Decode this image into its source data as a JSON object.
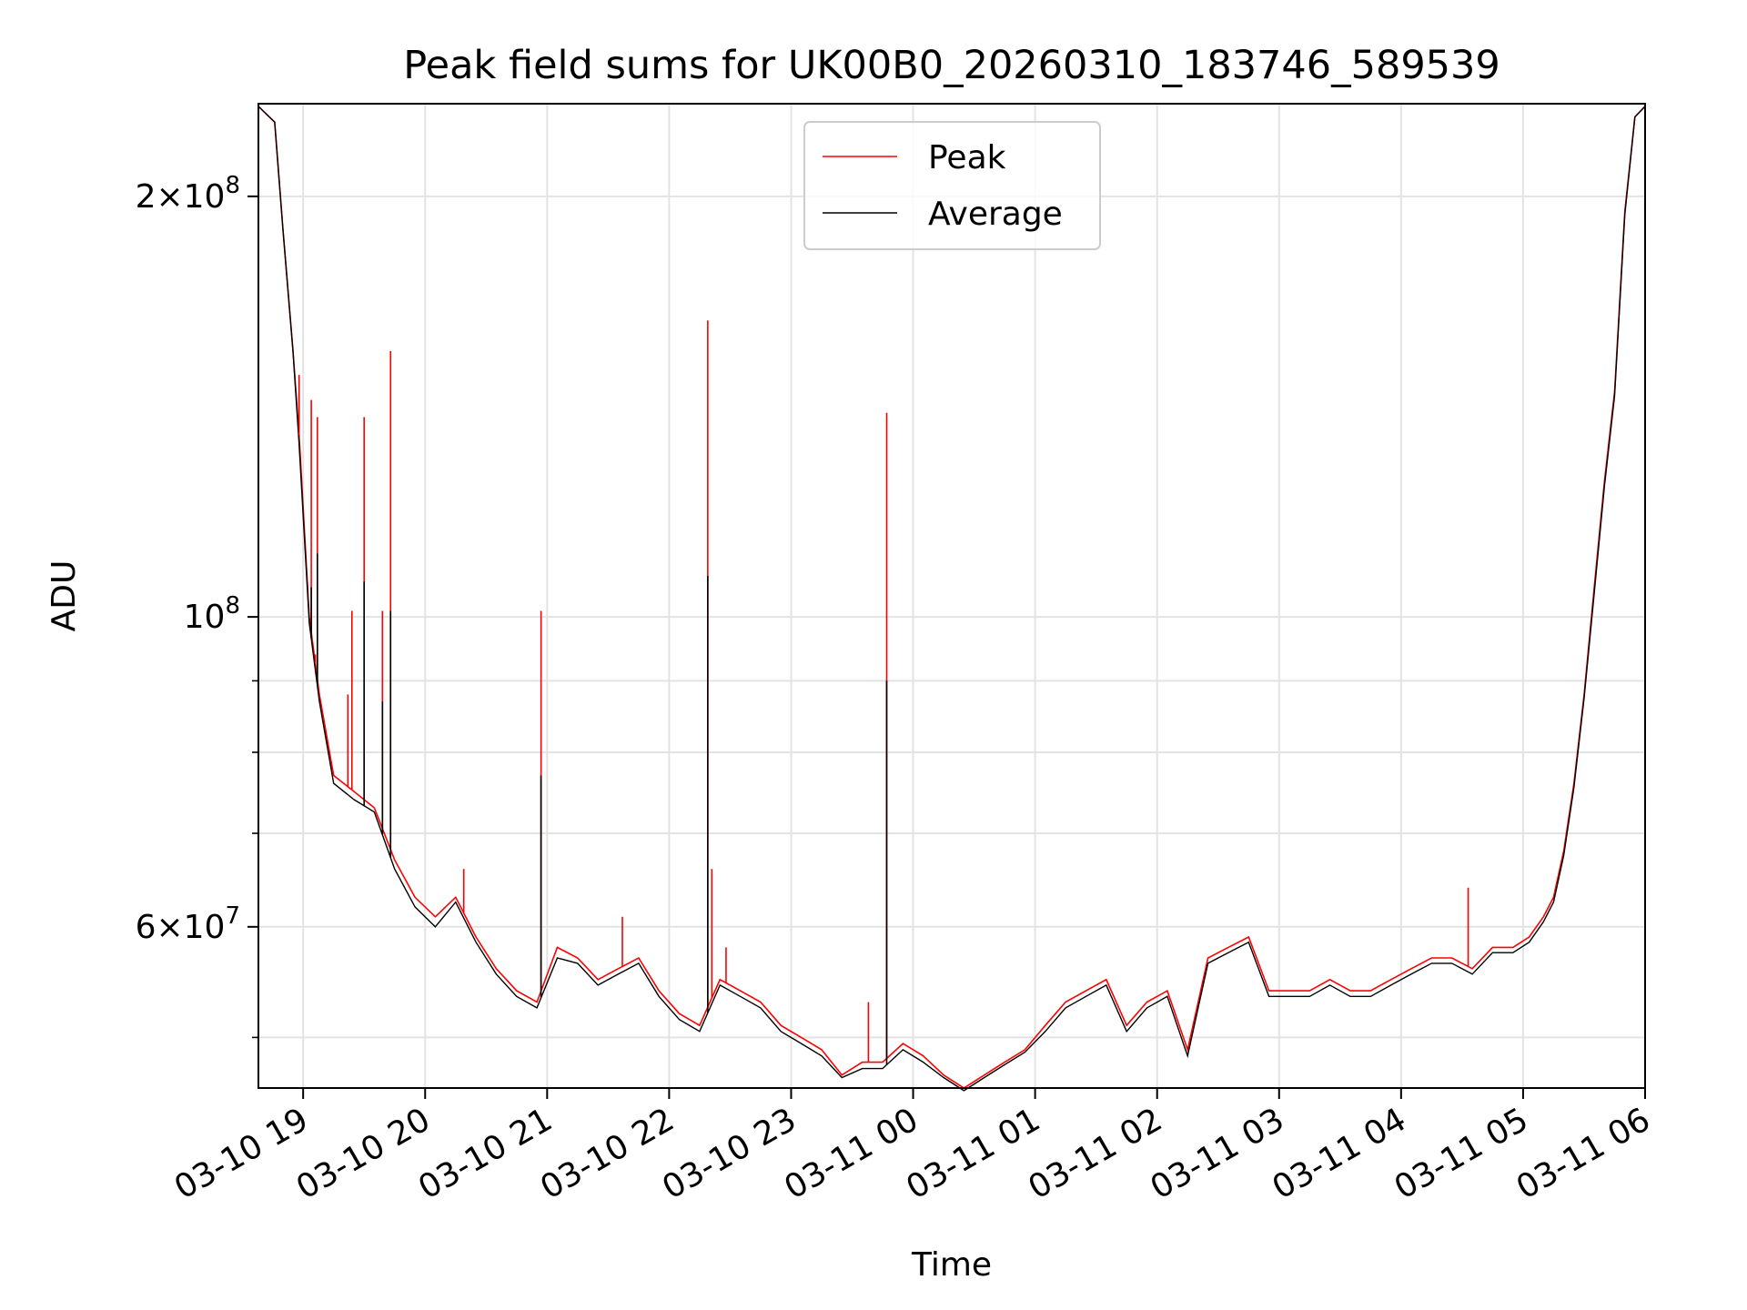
{
  "chart_data": {
    "type": "line",
    "title": "Peak field sums for UK00B0_20260310_183746_589539",
    "xlabel": "Time",
    "ylabel": "ADU",
    "yscale": "log",
    "ylim": [
      46000000,
      233000000
    ],
    "xlim": [
      "2026-03-10 18:38",
      "2026-03-11 06:00"
    ],
    "grid": true,
    "legend_position": "upper center",
    "x_ticks": [
      "03-10 19",
      "03-10 20",
      "03-10 21",
      "03-10 22",
      "03-10 23",
      "03-11 00",
      "03-11 01",
      "03-11 02",
      "03-11 03",
      "03-11 04",
      "03-11 05",
      "03-11 06"
    ],
    "x_tick_times": [
      "2026-03-10 19:00",
      "2026-03-10 20:00",
      "2026-03-10 21:00",
      "2026-03-10 22:00",
      "2026-03-10 23:00",
      "2026-03-11 00:00",
      "2026-03-11 01:00",
      "2026-03-11 02:00",
      "2026-03-11 03:00",
      "2026-03-11 04:00",
      "2026-03-11 05:00",
      "2026-03-11 06:00"
    ],
    "y_ticks": [
      {
        "value": 60000000,
        "mantissa": "6",
        "exponent": "7"
      },
      {
        "value": 100000000,
        "mantissa": "",
        "exponent": "8"
      },
      {
        "value": 200000000,
        "mantissa": "2",
        "exponent": "8"
      }
    ],
    "y_minor_ticks": [
      50000000,
      70000000,
      80000000,
      90000000
    ],
    "series": [
      {
        "name": "Peak",
        "color": "#ff0000",
        "x": [
          "2026-03-10 18:38",
          "2026-03-10 18:46",
          "2026-03-10 18:50",
          "2026-03-10 18:55",
          "2026-03-10 18:58",
          "2026-03-10 19:03",
          "2026-03-10 19:08",
          "2026-03-10 19:15",
          "2026-03-10 19:25",
          "2026-03-10 19:35",
          "2026-03-10 19:45",
          "2026-03-10 19:55",
          "2026-03-10 20:05",
          "2026-03-10 20:15",
          "2026-03-10 20:25",
          "2026-03-10 20:35",
          "2026-03-10 20:45",
          "2026-03-10 20:55",
          "2026-03-10 21:05",
          "2026-03-10 21:15",
          "2026-03-10 21:25",
          "2026-03-10 21:35",
          "2026-03-10 21:45",
          "2026-03-10 21:55",
          "2026-03-10 22:05",
          "2026-03-10 22:15",
          "2026-03-10 22:25",
          "2026-03-10 22:35",
          "2026-03-10 22:45",
          "2026-03-10 22:55",
          "2026-03-10 23:05",
          "2026-03-10 23:15",
          "2026-03-10 23:25",
          "2026-03-10 23:35",
          "2026-03-10 23:45",
          "2026-03-10 23:55",
          "2026-03-11 00:05",
          "2026-03-11 00:15",
          "2026-03-11 00:25",
          "2026-03-11 00:35",
          "2026-03-11 00:45",
          "2026-03-11 00:55",
          "2026-03-11 01:05",
          "2026-03-11 01:15",
          "2026-03-11 01:25",
          "2026-03-11 01:35",
          "2026-03-11 01:45",
          "2026-03-11 01:55",
          "2026-03-11 02:05",
          "2026-03-11 02:15",
          "2026-03-11 02:25",
          "2026-03-11 02:35",
          "2026-03-11 02:45",
          "2026-03-11 02:55",
          "2026-03-11 03:05",
          "2026-03-11 03:15",
          "2026-03-11 03:25",
          "2026-03-11 03:35",
          "2026-03-11 03:45",
          "2026-03-11 03:55",
          "2026-03-11 04:05",
          "2026-03-11 04:15",
          "2026-03-11 04:25",
          "2026-03-11 04:35",
          "2026-03-11 04:45",
          "2026-03-11 04:55",
          "2026-03-11 05:03",
          "2026-03-11 05:10",
          "2026-03-11 05:15",
          "2026-03-11 05:20",
          "2026-03-11 05:25",
          "2026-03-11 05:30",
          "2026-03-11 05:35",
          "2026-03-11 05:40",
          "2026-03-11 05:45",
          "2026-03-11 05:50",
          "2026-03-11 05:55",
          "2026-03-11 06:00"
        ],
        "values": [
          232000000,
          226000000,
          190000000,
          155000000,
          135000000,
          100000000,
          88000000,
          77000000,
          75000000,
          73000000,
          67000000,
          63000000,
          61000000,
          63000000,
          59000000,
          56000000,
          54000000,
          53000000,
          58000000,
          57000000,
          55000000,
          56000000,
          57000000,
          54000000,
          52000000,
          51000000,
          55000000,
          54000000,
          53000000,
          51000000,
          50000000,
          49000000,
          47000000,
          48000000,
          48000000,
          49500000,
          48500000,
          47000000,
          46000000,
          47000000,
          48000000,
          49000000,
          51000000,
          53000000,
          54000000,
          55000000,
          51000000,
          53000000,
          54000000,
          49000000,
          57000000,
          58000000,
          59000000,
          54000000,
          54000000,
          54000000,
          55000000,
          54000000,
          54000000,
          55000000,
          56000000,
          57000000,
          57000000,
          56000000,
          58000000,
          58000000,
          59000000,
          61000000,
          63000000,
          68000000,
          76000000,
          88000000,
          105000000,
          125000000,
          145000000,
          195000000,
          228000000,
          232000000
        ],
        "spikes": [
          {
            "x": "2026-03-10 18:58",
            "value": 149000000
          },
          {
            "x": "2026-03-10 19:04",
            "value": 143000000
          },
          {
            "x": "2026-03-10 19:06",
            "value": 94000000
          },
          {
            "x": "2026-03-10 19:07",
            "value": 139000000
          },
          {
            "x": "2026-03-10 19:22",
            "value": 88000000
          },
          {
            "x": "2026-03-10 19:24",
            "value": 101000000
          },
          {
            "x": "2026-03-10 19:30",
            "value": 139000000
          },
          {
            "x": "2026-03-10 19:39",
            "value": 101000000
          },
          {
            "x": "2026-03-10 19:43",
            "value": 155000000
          },
          {
            "x": "2026-03-10 20:19",
            "value": 66000000
          },
          {
            "x": "2026-03-10 20:57",
            "value": 101000000
          },
          {
            "x": "2026-03-10 21:37",
            "value": 61000000
          },
          {
            "x": "2026-03-10 22:19",
            "value": 163000000
          },
          {
            "x": "2026-03-10 22:21",
            "value": 66000000
          },
          {
            "x": "2026-03-10 22:28",
            "value": 58000000
          },
          {
            "x": "2026-03-10 23:38",
            "value": 53000000
          },
          {
            "x": "2026-03-10 23:47",
            "value": 140000000
          },
          {
            "x": "2026-03-11 04:33",
            "value": 64000000
          }
        ]
      },
      {
        "name": "Average",
        "color": "#000000",
        "x": [
          "2026-03-10 18:38",
          "2026-03-10 18:46",
          "2026-03-10 18:50",
          "2026-03-10 18:55",
          "2026-03-10 18:58",
          "2026-03-10 19:03",
          "2026-03-10 19:08",
          "2026-03-10 19:15",
          "2026-03-10 19:25",
          "2026-03-10 19:35",
          "2026-03-10 19:45",
          "2026-03-10 19:55",
          "2026-03-10 20:05",
          "2026-03-10 20:15",
          "2026-03-10 20:25",
          "2026-03-10 20:35",
          "2026-03-10 20:45",
          "2026-03-10 20:55",
          "2026-03-10 21:05",
          "2026-03-10 21:15",
          "2026-03-10 21:25",
          "2026-03-10 21:35",
          "2026-03-10 21:45",
          "2026-03-10 21:55",
          "2026-03-10 22:05",
          "2026-03-10 22:15",
          "2026-03-10 22:25",
          "2026-03-10 22:35",
          "2026-03-10 22:45",
          "2026-03-10 22:55",
          "2026-03-10 23:05",
          "2026-03-10 23:15",
          "2026-03-10 23:25",
          "2026-03-10 23:35",
          "2026-03-10 23:45",
          "2026-03-10 23:55",
          "2026-03-11 00:05",
          "2026-03-11 00:15",
          "2026-03-11 00:25",
          "2026-03-11 00:35",
          "2026-03-11 00:45",
          "2026-03-11 00:55",
          "2026-03-11 01:05",
          "2026-03-11 01:15",
          "2026-03-11 01:25",
          "2026-03-11 01:35",
          "2026-03-11 01:45",
          "2026-03-11 01:55",
          "2026-03-11 02:05",
          "2026-03-11 02:15",
          "2026-03-11 02:25",
          "2026-03-11 02:35",
          "2026-03-11 02:45",
          "2026-03-11 02:55",
          "2026-03-11 03:05",
          "2026-03-11 03:15",
          "2026-03-11 03:25",
          "2026-03-11 03:35",
          "2026-03-11 03:45",
          "2026-03-11 03:55",
          "2026-03-11 04:05",
          "2026-03-11 04:15",
          "2026-03-11 04:25",
          "2026-03-11 04:35",
          "2026-03-11 04:45",
          "2026-03-11 04:55",
          "2026-03-11 05:03",
          "2026-03-11 05:10",
          "2026-03-11 05:15",
          "2026-03-11 05:20",
          "2026-03-11 05:25",
          "2026-03-11 05:30",
          "2026-03-11 05:35",
          "2026-03-11 05:40",
          "2026-03-11 05:45",
          "2026-03-11 05:50",
          "2026-03-11 05:55",
          "2026-03-11 06:00"
        ],
        "values": [
          232000000,
          226000000,
          190000000,
          155000000,
          133000000,
          99000000,
          87000000,
          76000000,
          74000000,
          72500000,
          66000000,
          62000000,
          60000000,
          62500000,
          58500000,
          55500000,
          53500000,
          52500000,
          57000000,
          56500000,
          54500000,
          55500000,
          56500000,
          53500000,
          51500000,
          50500000,
          54500000,
          53500000,
          52500000,
          50500000,
          49500000,
          48500000,
          46800000,
          47500000,
          47500000,
          49000000,
          48000000,
          46800000,
          45800000,
          46800000,
          47800000,
          48800000,
          50500000,
          52500000,
          53500000,
          54500000,
          50500000,
          52500000,
          53500000,
          48500000,
          56500000,
          57500000,
          58500000,
          53500000,
          53500000,
          53500000,
          54500000,
          53500000,
          53500000,
          54500000,
          55500000,
          56500000,
          56500000,
          55500000,
          57500000,
          57500000,
          58500000,
          60500000,
          62500000,
          67500000,
          75500000,
          87500000,
          104000000,
          124000000,
          144000000,
          194000000,
          228000000,
          232000000
        ],
        "spikes": [
          {
            "x": "2026-03-10 19:04",
            "value": 105000000
          },
          {
            "x": "2026-03-10 19:07",
            "value": 111000000
          },
          {
            "x": "2026-03-10 19:30",
            "value": 106000000
          },
          {
            "x": "2026-03-10 19:39",
            "value": 87000000
          },
          {
            "x": "2026-03-10 19:43",
            "value": 101000000
          },
          {
            "x": "2026-03-10 20:57",
            "value": 77000000
          },
          {
            "x": "2026-03-10 22:19",
            "value": 107000000
          },
          {
            "x": "2026-03-10 23:47",
            "value": 90000000
          }
        ]
      }
    ]
  }
}
